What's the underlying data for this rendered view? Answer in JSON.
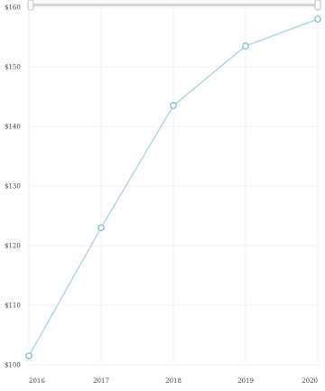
{
  "chart_data": {
    "type": "line",
    "title": "",
    "xlabel": "",
    "ylabel": "",
    "x": [
      "2016",
      "2017",
      "2018",
      "2019",
      "2020"
    ],
    "series": [
      {
        "values": [
          101.5,
          123.0,
          143.5,
          153.5,
          158.0
        ]
      }
    ],
    "ylim": [
      100,
      160
    ],
    "yticks": [
      100,
      110,
      120,
      130,
      140,
      150,
      160
    ],
    "ytick_labels": [
      "$100",
      "$110",
      "$120",
      "$130",
      "$140",
      "$150",
      "$160"
    ],
    "grid": true,
    "legend": "none",
    "range_slider": true,
    "colors": {
      "line": "#a9d6e5",
      "marker": "#7fbcd2",
      "grid": "#f1f1f1",
      "slider_bar": "#d6d6d6",
      "slider_handle": "#bbbbbb"
    }
  }
}
